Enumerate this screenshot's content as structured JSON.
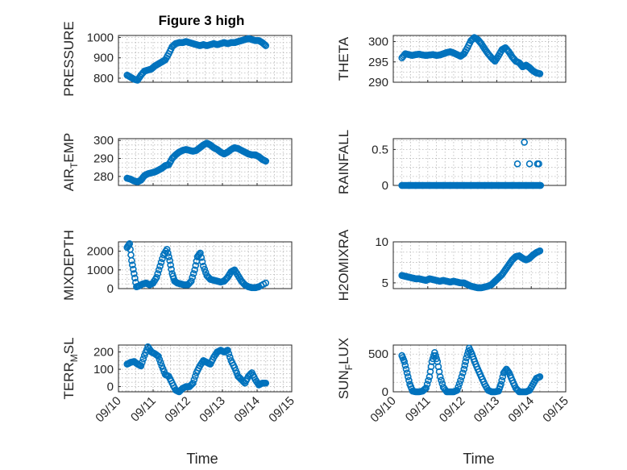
{
  "figure": {
    "title": "Figure 3 high",
    "marker_color": "#0072BD",
    "x_axis_label": "Time",
    "x_ticks": [
      "09/10",
      "09/11",
      "09/12",
      "09/13",
      "09/14",
      "09/15"
    ]
  },
  "chart_data": [
    {
      "type": "scatter",
      "id": "pressure",
      "title": "Figure 3 high",
      "ylabel": "PRESSURE",
      "xlabel": "",
      "xlim": [
        "09/10",
        "09/15"
      ],
      "ylim": [
        780,
        1010
      ],
      "yticks": [
        800,
        900,
        1000
      ],
      "xtick_labels_shown": false,
      "grid": true,
      "x_days": [
        0.25,
        0.35,
        0.45,
        0.55,
        0.65,
        0.75,
        0.85,
        0.95,
        1.05,
        1.15,
        1.25,
        1.35,
        1.45,
        1.55,
        1.65,
        1.75,
        1.85,
        1.95,
        2.05,
        2.15,
        2.25,
        2.35,
        2.45,
        2.55,
        2.65,
        2.75,
        2.85,
        2.95,
        3.05,
        3.15,
        3.25,
        3.35,
        3.45,
        3.55,
        3.65,
        3.75,
        3.85,
        3.95,
        4.05,
        4.15,
        4.25
      ],
      "y": [
        815,
        805,
        795,
        790,
        815,
        835,
        840,
        845,
        860,
        870,
        880,
        890,
        920,
        955,
        970,
        975,
        975,
        980,
        975,
        970,
        965,
        960,
        965,
        960,
        965,
        970,
        965,
        970,
        975,
        970,
        975,
        975,
        980,
        985,
        990,
        995,
        990,
        985,
        985,
        975,
        960
      ]
    },
    {
      "type": "scatter",
      "id": "theta",
      "ylabel": "THETA",
      "xlabel": "",
      "xlim": [
        "09/10",
        "09/15"
      ],
      "ylim": [
        290,
        301.5
      ],
      "yticks": [
        290,
        295,
        300
      ],
      "xtick_labels_shown": false,
      "grid": true,
      "x_days": [
        0.25,
        0.35,
        0.45,
        0.55,
        0.65,
        0.75,
        0.85,
        0.95,
        1.05,
        1.15,
        1.25,
        1.35,
        1.45,
        1.55,
        1.65,
        1.75,
        1.85,
        1.95,
        2.05,
        2.15,
        2.25,
        2.35,
        2.45,
        2.55,
        2.65,
        2.75,
        2.85,
        2.95,
        3.05,
        3.15,
        3.25,
        3.35,
        3.45,
        3.55,
        3.65,
        3.75,
        3.85,
        3.95,
        4.05,
        4.15,
        4.25
      ],
      "y": [
        296,
        297,
        296.8,
        296.6,
        296.8,
        296.9,
        296.7,
        296.6,
        296.7,
        296.8,
        296.6,
        296.7,
        297,
        297.3,
        297.5,
        297.2,
        296.8,
        296.4,
        297,
        298.5,
        300.2,
        301,
        300.5,
        299.5,
        298.2,
        297,
        296,
        295.2,
        296.5,
        298,
        298.5,
        297.5,
        296.2,
        295.2,
        294.8,
        293.8,
        294.2,
        293.6,
        292.8,
        292.3,
        292.1
      ]
    },
    {
      "type": "scatter",
      "id": "air_temp",
      "ylabel": "AIR_TEMP",
      "xlabel": "",
      "xlim": [
        "09/10",
        "09/15"
      ],
      "ylim": [
        275,
        301
      ],
      "yticks": [
        280,
        290,
        300
      ],
      "xtick_labels_shown": false,
      "grid": true,
      "x_days": [
        0.25,
        0.35,
        0.45,
        0.55,
        0.65,
        0.75,
        0.85,
        0.95,
        1.05,
        1.15,
        1.25,
        1.35,
        1.45,
        1.55,
        1.65,
        1.75,
        1.85,
        1.95,
        2.05,
        2.15,
        2.25,
        2.35,
        2.45,
        2.55,
        2.65,
        2.75,
        2.85,
        2.95,
        3.05,
        3.15,
        3.25,
        3.35,
        3.45,
        3.55,
        3.65,
        3.75,
        3.85,
        3.95,
        4.05,
        4.15,
        4.25
      ],
      "y": [
        279,
        278.5,
        277.5,
        277,
        278,
        280.5,
        281.5,
        282,
        282.5,
        283.5,
        284.5,
        286,
        286.5,
        290,
        292,
        293.5,
        294.5,
        295,
        294.5,
        294,
        294.5,
        296,
        297.5,
        298.5,
        297.5,
        296,
        295,
        293.5,
        292.5,
        293.5,
        295,
        296,
        295.5,
        294.5,
        293.5,
        292.5,
        292,
        292,
        291,
        289.5,
        288.5
      ]
    },
    {
      "type": "scatter",
      "id": "rainfall",
      "ylabel": "RAINFALL",
      "xlabel": "",
      "xlim": [
        "09/10",
        "09/15"
      ],
      "ylim": [
        0,
        0.65
      ],
      "yticks": [
        0,
        0.5
      ],
      "ytick_labels": [
        "0",
        "0.5"
      ],
      "xtick_labels_shown": false,
      "grid": true,
      "note_points": "dense zeros from 09/10 to 09/14 plus a few nonzero values",
      "x_days": [
        0.25,
        0.45,
        0.65,
        0.85,
        1.05,
        1.25,
        1.45,
        1.65,
        1.85,
        2.05,
        2.25,
        2.45,
        2.65,
        2.85,
        3.05,
        3.25,
        3.45,
        3.65,
        3.85,
        4.05,
        4.25,
        3.6,
        3.8,
        3.95,
        4.18,
        4.22
      ],
      "y": [
        0,
        0,
        0,
        0,
        0,
        0,
        0,
        0,
        0,
        0,
        0,
        0,
        0,
        0,
        0,
        0,
        0,
        0,
        0,
        0,
        0,
        0.3,
        0.6,
        0.3,
        0.3,
        0.3
      ]
    },
    {
      "type": "scatter",
      "id": "mixdepth",
      "ylabel": "MIXDEPTH",
      "xlabel": "",
      "xlim": [
        "09/10",
        "09/15"
      ],
      "ylim": [
        0,
        2500
      ],
      "yticks": [
        0,
        1000,
        2000
      ],
      "xtick_labels_shown": false,
      "grid": true,
      "x_days": [
        0.25,
        0.32,
        0.38,
        0.45,
        0.52,
        0.6,
        0.7,
        0.8,
        0.9,
        1.0,
        1.1,
        1.2,
        1.3,
        1.4,
        1.48,
        1.55,
        1.62,
        1.7,
        1.8,
        1.9,
        2.0,
        2.1,
        2.2,
        2.28,
        2.36,
        2.45,
        2.55,
        2.65,
        2.75,
        2.85,
        2.95,
        3.05,
        3.15,
        3.25,
        3.35,
        3.45,
        3.55,
        3.65,
        3.75,
        3.85,
        3.95,
        4.05,
        4.25
      ],
      "y": [
        2200,
        2400,
        1500,
        800,
        100,
        150,
        250,
        300,
        200,
        300,
        600,
        1200,
        1800,
        2100,
        1500,
        800,
        400,
        300,
        250,
        200,
        200,
        400,
        1000,
        1700,
        1900,
        1200,
        700,
        500,
        450,
        400,
        350,
        400,
        600,
        900,
        1000,
        700,
        400,
        200,
        100,
        50,
        50,
        100,
        300
      ]
    },
    {
      "type": "scatter",
      "id": "h2omixra",
      "ylabel": "H2OMIXRA",
      "xlabel": "",
      "xlim": [
        "09/10",
        "09/15"
      ],
      "ylim": [
        4.3,
        10
      ],
      "yticks": [
        5,
        10
      ],
      "xtick_labels_shown": false,
      "grid": true,
      "x_days": [
        0.25,
        0.35,
        0.45,
        0.55,
        0.65,
        0.75,
        0.85,
        0.95,
        1.05,
        1.15,
        1.25,
        1.35,
        1.45,
        1.55,
        1.65,
        1.75,
        1.85,
        1.95,
        2.05,
        2.15,
        2.25,
        2.35,
        2.45,
        2.55,
        2.65,
        2.75,
        2.85,
        2.95,
        3.05,
        3.15,
        3.25,
        3.35,
        3.45,
        3.55,
        3.65,
        3.75,
        3.85,
        3.95,
        4.05,
        4.15,
        4.25
      ],
      "y": [
        5.9,
        5.8,
        5.7,
        5.6,
        5.5,
        5.5,
        5.4,
        5.3,
        5.5,
        5.4,
        5.3,
        5.2,
        5.3,
        5.2,
        5.1,
        5.2,
        5.1,
        5.0,
        5.0,
        4.8,
        4.6,
        4.5,
        4.4,
        4.4,
        4.5,
        4.6,
        4.8,
        5.2,
        5.6,
        6.0,
        6.6,
        7.2,
        7.8,
        8.2,
        8.3,
        8.0,
        7.8,
        8.0,
        8.4,
        8.7,
        8.9
      ]
    },
    {
      "type": "scatter",
      "id": "terr_msl",
      "ylabel": "TERR_MSL",
      "xlabel": "Time",
      "xlim": [
        "09/10",
        "09/15"
      ],
      "ylim": [
        -30,
        240
      ],
      "yticks": [
        0,
        100,
        200
      ],
      "xtick_labels_shown": true,
      "grid": true,
      "x_days": [
        0.25,
        0.35,
        0.45,
        0.55,
        0.65,
        0.75,
        0.85,
        0.95,
        1.05,
        1.15,
        1.25,
        1.35,
        1.45,
        1.55,
        1.65,
        1.75,
        1.85,
        1.95,
        2.05,
        2.15,
        2.25,
        2.35,
        2.45,
        2.55,
        2.65,
        2.75,
        2.85,
        2.95,
        3.05,
        3.15,
        3.25,
        3.35,
        3.45,
        3.55,
        3.65,
        3.75,
        3.85,
        3.95,
        4.05,
        4.15,
        4.25
      ],
      "y": [
        130,
        140,
        145,
        130,
        120,
        180,
        230,
        200,
        190,
        175,
        120,
        70,
        60,
        20,
        -20,
        -30,
        -10,
        0,
        0,
        20,
        80,
        120,
        150,
        140,
        130,
        170,
        200,
        210,
        200,
        210,
        150,
        110,
        60,
        40,
        20,
        60,
        80,
        40,
        10,
        20,
        20
      ]
    },
    {
      "type": "scatter",
      "id": "sun_flux",
      "ylabel": "SUN_FLUX",
      "xlabel": "Time",
      "xlim": [
        "09/10",
        "09/15"
      ],
      "ylim": [
        0,
        620
      ],
      "yticks": [
        0,
        500
      ],
      "xtick_labels_shown": true,
      "grid": true,
      "x_days": [
        0.25,
        0.32,
        0.4,
        0.48,
        0.56,
        0.65,
        0.75,
        0.85,
        0.95,
        1.05,
        1.12,
        1.2,
        1.28,
        1.36,
        1.45,
        1.55,
        1.65,
        1.75,
        1.85,
        1.95,
        2.05,
        2.12,
        2.2,
        2.28,
        2.36,
        2.45,
        2.55,
        2.65,
        2.75,
        2.85,
        2.95,
        3.05,
        3.12,
        3.2,
        3.28,
        3.36,
        3.45,
        3.55,
        3.65,
        3.75,
        3.85,
        3.95,
        4.05,
        4.15,
        4.25
      ],
      "y": [
        480,
        400,
        250,
        100,
        10,
        0,
        0,
        10,
        50,
        200,
        400,
        520,
        400,
        200,
        60,
        0,
        0,
        0,
        20,
        150,
        300,
        450,
        580,
        500,
        400,
        300,
        200,
        100,
        20,
        0,
        0,
        10,
        100,
        250,
        300,
        250,
        150,
        50,
        0,
        0,
        0,
        20,
        100,
        180,
        200
      ]
    }
  ]
}
